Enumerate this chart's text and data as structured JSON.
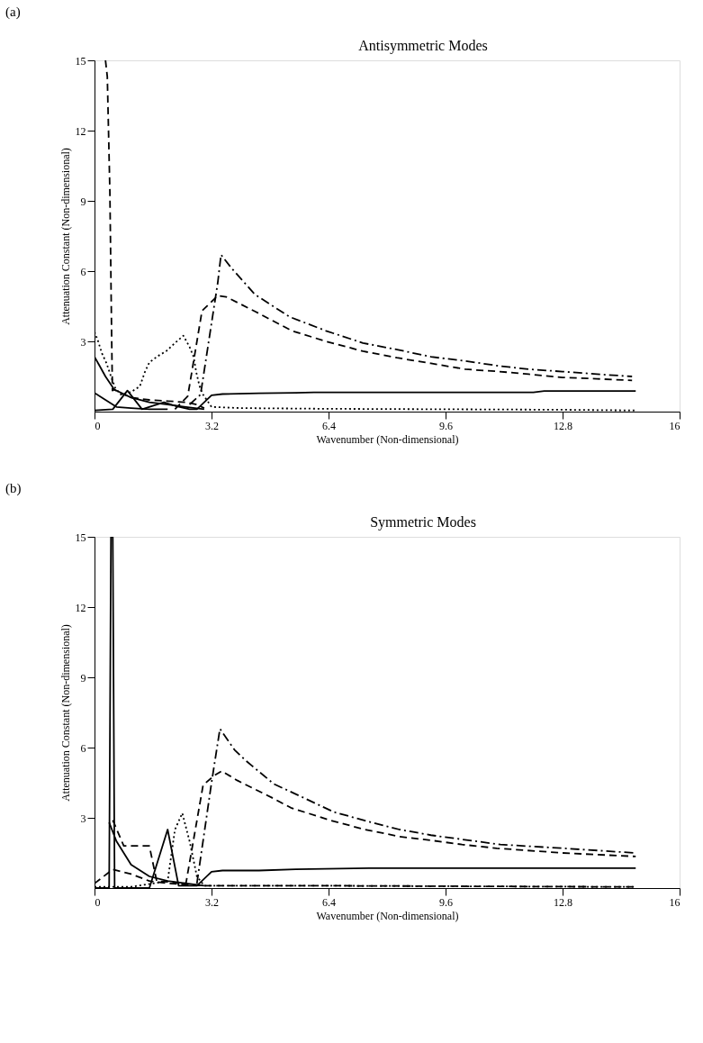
{
  "chart_data": [
    {
      "type": "line",
      "title": "Antisymmetric Modes",
      "annotations": [
        "(a)"
      ],
      "xlabel": "Wavenumber (Non-dimensional)",
      "ylabel": "Attenuation Constant (Non-dimensional)",
      "xlim": [
        0,
        16
      ],
      "ylim": [
        0,
        15
      ],
      "xticks": [
        0,
        {
          "value": 3.2,
          "label": "3.2"
        },
        {
          "value": 6.4,
          "label": "6.4"
        },
        {
          "value": 9.6,
          "label": "9.6"
        },
        {
          "value": 12.8,
          "label": "12.8"
        },
        16
      ],
      "yticks": [
        3,
        6,
        9,
        12,
        15
      ],
      "grid": false,
      "series": [
        {
          "color": "#000000",
          "line_style": "dashed",
          "x": [
            0.3,
            0.35,
            0.42,
            0.47,
            0.49,
            0.54,
            0.7,
            1.0,
            1.5,
            2.0,
            2.5,
            2.8,
            3.0
          ],
          "values": [
            15.0,
            14.3,
            9.4,
            3.0,
            0.9,
            0.94,
            0.8,
            0.6,
            0.5,
            0.45,
            0.4,
            0.3,
            0.15
          ]
        },
        {
          "color": "#000000",
          "line_style": "dotted",
          "x": [
            0,
            0.1,
            0.2,
            0.33,
            0.45,
            0.57,
            0.72,
            1.0,
            1.24,
            1.38,
            1.5,
            1.73,
            1.96,
            2.2,
            2.43,
            2.6,
            2.71,
            2.78,
            2.87,
            2.95,
            3.2,
            4.0,
            6.4,
            9.6,
            12.8,
            14.8
          ],
          "values": [
            3.4,
            3.0,
            2.5,
            2.06,
            1.5,
            1.0,
            0.73,
            0.84,
            1.08,
            1.7,
            2.1,
            2.37,
            2.58,
            2.93,
            3.24,
            2.76,
            2.34,
            1.7,
            1.1,
            0.77,
            0.2,
            0.15,
            0.12,
            0.1,
            0.08,
            0.05
          ]
        },
        {
          "color": "#000000",
          "line_style": "solid",
          "x": [
            0,
            0.14,
            0.3,
            0.54,
            1.0,
            1.5,
            2.0,
            2.5,
            3.0
          ],
          "values": [
            2.34,
            1.95,
            1.5,
            0.94,
            0.6,
            0.4,
            0.3,
            0.2,
            0.1
          ]
        },
        {
          "color": "#000000",
          "line_style": "solid",
          "x": [
            0,
            0.3,
            0.6,
            1.0,
            1.5,
            2.0
          ],
          "values": [
            0.8,
            0.5,
            0.2,
            0.15,
            0.1,
            0.1
          ]
        },
        {
          "color": "#000000",
          "line_style": "solid",
          "x": [
            0,
            0.5,
            0.9,
            1.3,
            1.9,
            2.2,
            2.6,
            2.8,
            3.2,
            3.5,
            4.5,
            5.5,
            6.0,
            12.0,
            12.3,
            14.8
          ],
          "values": [
            0.05,
            0.1,
            0.9,
            0.1,
            0.4,
            0.25,
            0.1,
            0.1,
            0.7,
            0.75,
            0.78,
            0.8,
            0.82,
            0.82,
            0.88,
            0.88
          ]
        },
        {
          "color": "#000000",
          "line_style": "dashed",
          "x": [
            2.2,
            2.55,
            2.94,
            3.37,
            3.6,
            4.4,
            5.4,
            6.33,
            7.34,
            8.27,
            9.2,
            10.14,
            11.07,
            11.87,
            12.8,
            13.74,
            14.7
          ],
          "values": [
            0.1,
            0.66,
            4.3,
            4.95,
            4.9,
            4.27,
            3.45,
            3.0,
            2.58,
            2.3,
            2.06,
            1.81,
            1.71,
            1.6,
            1.46,
            1.4,
            1.33
          ]
        },
        {
          "color": "#000000",
          "line_style": "dashdot",
          "x": [
            2.6,
            2.9,
            3.37,
            3.46,
            3.76,
            4.39,
            5.33,
            6.33,
            7.34,
            8.27,
            9.2,
            10.14,
            11.07,
            11.87,
            12.8,
            13.74,
            14.7
          ],
          "values": [
            0.3,
            0.73,
            5.5,
            6.7,
            6.1,
            5.0,
            4.05,
            3.45,
            2.93,
            2.65,
            2.34,
            2.16,
            1.95,
            1.81,
            1.71,
            1.6,
            1.5
          ]
        }
      ]
    },
    {
      "type": "line",
      "title": "Symmetric Modes",
      "annotations": [
        "(b)"
      ],
      "xlabel": "Wavenumber (Non-dimensional)",
      "ylabel": "Attenuation Constant  (Non-dimensional)",
      "xlim": [
        0,
        16
      ],
      "ylim": [
        0,
        15
      ],
      "xticks": [
        0,
        {
          "value": 3.2,
          "label": "3.2"
        },
        {
          "value": 6.4,
          "label": "6.4"
        },
        {
          "value": 9.6,
          "label": "9.6"
        },
        {
          "value": 12.8,
          "label": "12.8"
        },
        16
      ],
      "yticks": [
        3,
        6,
        9,
        12,
        15
      ],
      "grid": false,
      "series": [
        {
          "color": "#000000",
          "line_style": "dashed",
          "x": [
            0,
            0.5,
            1.0,
            1.5,
            2.0,
            3.0,
            6.4,
            9.6,
            12.8,
            14.8
          ],
          "values": [
            0.2,
            0.8,
            0.6,
            0.3,
            0.2,
            0.1,
            0.1,
            0.08,
            0.06,
            0.05
          ]
        },
        {
          "color": "#000000",
          "line_style": "dotted",
          "x": [
            0,
            1.0,
            2.0,
            2.2,
            2.4,
            2.6,
            2.8,
            3.0,
            6.4,
            9.6,
            12.8,
            14.8
          ],
          "values": [
            0.05,
            0.05,
            0.3,
            2.5,
            3.2,
            2.0,
            0.5,
            0.1,
            0.1,
            0.08,
            0.06,
            0.05
          ]
        },
        {
          "color": "#000000",
          "line_style": "solid",
          "x": [
            0.4,
            0.6,
            1.0,
            1.5,
            2.0,
            3.0
          ],
          "values": [
            2.8,
            2.0,
            1.0,
            0.5,
            0.3,
            0.1
          ]
        },
        {
          "color": "#000000",
          "line_style": "solid",
          "x": [
            0,
            0.4,
            0.45,
            0.5,
            0.55,
            1.5,
            2.0,
            2.3,
            2.8,
            3.2,
            3.5,
            4.5,
            5.5,
            7.5,
            14.8
          ],
          "values": [
            0,
            0,
            15,
            15,
            0,
            0,
            2.5,
            0.1,
            0.1,
            0.7,
            0.75,
            0.75,
            0.8,
            0.85,
            0.85
          ]
        },
        {
          "color": "#000000",
          "line_style": "dashed",
          "x": [
            0.5,
            0.8,
            1.5,
            1.7,
            2.5,
            2.97,
            3.27,
            3.48,
            3.9,
            4.84,
            5.37,
            6.47,
            7.4,
            8.34,
            9.2,
            10.05,
            11.0,
            12.8,
            14.8
          ],
          "values": [
            2.9,
            1.8,
            1.8,
            0.3,
            0.2,
            4.4,
            4.8,
            5.0,
            4.6,
            3.87,
            3.43,
            2.88,
            2.5,
            2.2,
            2.04,
            1.86,
            1.7,
            1.5,
            1.35
          ]
        },
        {
          "color": "#000000",
          "line_style": "dashdot",
          "x": [
            2.8,
            3.2,
            3.43,
            3.83,
            4.14,
            4.9,
            5.7,
            6.54,
            7.4,
            8.34,
            9.2,
            10.05,
            11.1,
            12.8,
            14.8
          ],
          "values": [
            0.2,
            4.5,
            6.8,
            5.9,
            5.44,
            4.45,
            3.87,
            3.25,
            2.88,
            2.5,
            2.26,
            2.08,
            1.86,
            1.7,
            1.5
          ]
        }
      ]
    }
  ]
}
